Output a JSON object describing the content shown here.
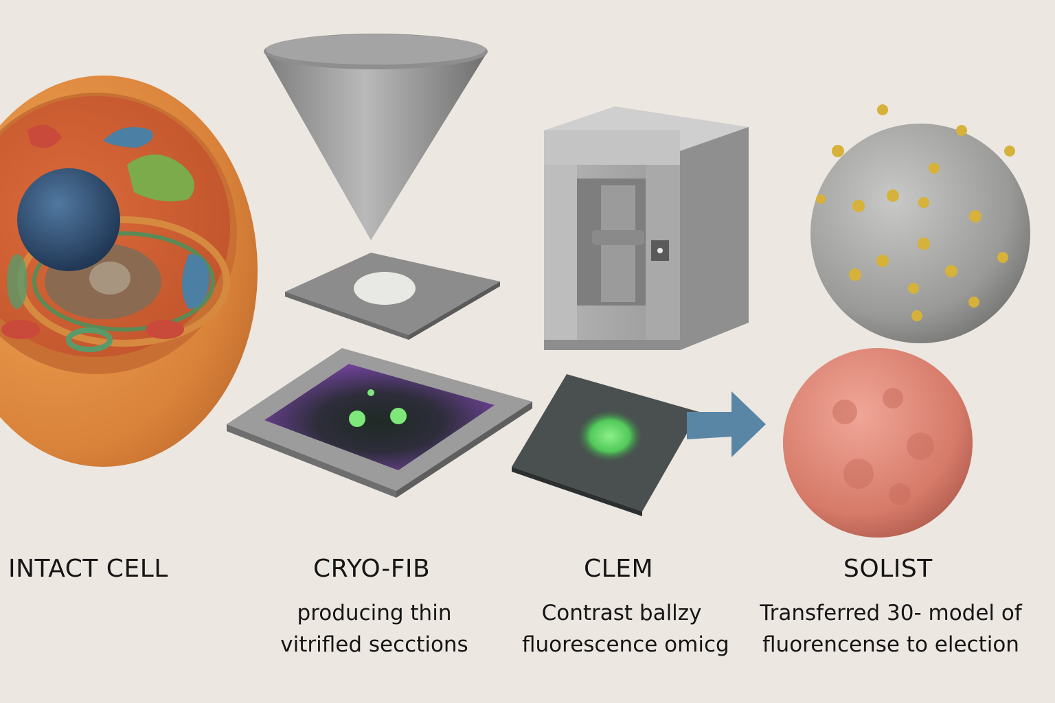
{
  "steps": [
    {
      "title": "INTACT CELL",
      "subtitle_lines": []
    },
    {
      "title": "CRYO-FIB",
      "subtitle_lines": [
        "producing thin",
        "vitrifled secctions"
      ]
    },
    {
      "title": "CLEM",
      "subtitle_lines": [
        "Contrast ballzy",
        "fluorescence omicg"
      ]
    },
    {
      "title": "SOLIST",
      "subtitle_lines": [
        "Transferred 30- model of",
        "fluorencense to election"
      ]
    }
  ],
  "colors": {
    "background": "#ece7e1",
    "cell_membrane": "#d98a3c",
    "nucleus": "#2e4a6b",
    "fluorescence": "#64e06a",
    "section_stain": "#7a45a8",
    "arrow": "#5a86a6",
    "virus_spikes": "#d6b23a",
    "pink_particle": "#d98272"
  },
  "icons": [
    "cell-cross-section-icon",
    "ion-beam-cone-icon",
    "grid-slab-icon",
    "microscope-box-icon",
    "fluorescence-frame-icon",
    "fluorescence-slide-icon",
    "arrow-right-icon",
    "spiked-particle-icon",
    "pink-particle-icon"
  ]
}
